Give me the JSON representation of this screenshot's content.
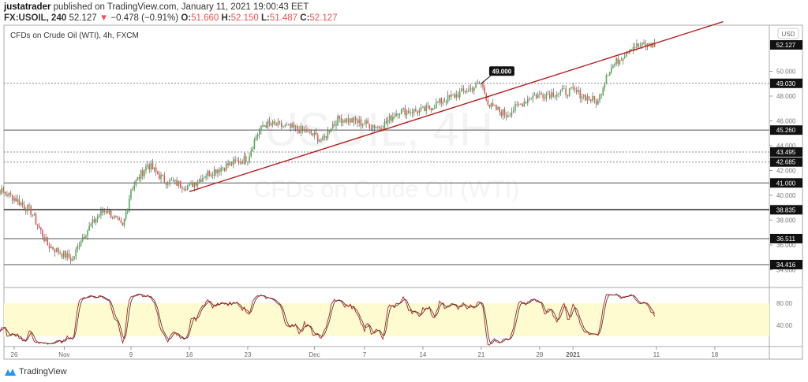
{
  "header": {
    "author": "justatrader",
    "published_text": "published on TradingView.com, January 11, 2021 19:00:43 EET",
    "symbol": "FX:USOIL, 240",
    "last": "52.127",
    "change": "−0.478 (−0.91%)",
    "o_label": "O:",
    "o": "51.660",
    "h_label": "H:",
    "h": "52.150",
    "l_label": "L:",
    "l": "51.487",
    "c_label": "C:",
    "c": "52.127",
    "direction_icon": "triangle-down-icon"
  },
  "chart_title": "CFDs on Crude Oil (WTI), 4h, FXCM",
  "watermark": {
    "line1": "USOIL, 4H",
    "line2": "CFDs on Crude Oil (WTI)"
  },
  "currency": "USD",
  "footer": {
    "brand": "TradingView"
  },
  "colors": {
    "up": "#26a69a",
    "down": "#ef5350",
    "candle_up": "#4caf50",
    "trendline": "#b71c1c",
    "stoch_k": "#b71c1c",
    "stoch_d": "#2e2e2e",
    "band": "#fffbd0"
  },
  "chart_data": [
    {
      "type": "candlestick",
      "title": "CFDs on Crude Oil (WTI), 4h, FXCM",
      "ylim": [
        33.5,
        53.5
      ],
      "y_ticks": [
        "34.000",
        "36.000",
        "38.000",
        "40.000",
        "42.000",
        "44.000",
        "46.000",
        "48.000",
        "50.000"
      ],
      "x_ticks": [
        "26",
        "Nov",
        "9",
        "16",
        "23",
        "Dec",
        "7",
        "14",
        "21",
        "28",
        "2021",
        "11",
        "18"
      ],
      "price_path": [
        {
          "date": "2020-10-23",
          "close": 40.8
        },
        {
          "date": "2020-10-26",
          "close": 39.8
        },
        {
          "date": "2020-10-28",
          "close": 38.7
        },
        {
          "date": "2020-10-30",
          "close": 36.0
        },
        {
          "date": "2020-11-02",
          "close": 34.8
        },
        {
          "date": "2020-11-03",
          "close": 36.5
        },
        {
          "date": "2020-11-05",
          "close": 38.3
        },
        {
          "date": "2020-11-06",
          "close": 38.9
        },
        {
          "date": "2020-11-08",
          "close": 37.4
        },
        {
          "date": "2020-11-09",
          "close": 40.5
        },
        {
          "date": "2020-11-10",
          "close": 41.5
        },
        {
          "date": "2020-11-11",
          "close": 42.5
        },
        {
          "date": "2020-11-13",
          "close": 41.2
        },
        {
          "date": "2020-11-16",
          "close": 40.7
        },
        {
          "date": "2020-11-18",
          "close": 41.7
        },
        {
          "date": "2020-11-20",
          "close": 42.3
        },
        {
          "date": "2020-11-23",
          "close": 43.0
        },
        {
          "date": "2020-11-24",
          "close": 44.8
        },
        {
          "date": "2020-11-25",
          "close": 45.7
        },
        {
          "date": "2020-11-26",
          "close": 45.7
        },
        {
          "date": "2020-11-30",
          "close": 45.2
        },
        {
          "date": "2020-12-01",
          "close": 44.8
        },
        {
          "date": "2020-12-02",
          "close": 44.4
        },
        {
          "date": "2020-12-03",
          "close": 45.6
        },
        {
          "date": "2020-12-04",
          "close": 46.2
        },
        {
          "date": "2020-12-07",
          "close": 45.8
        },
        {
          "date": "2020-12-09",
          "close": 45.5
        },
        {
          "date": "2020-12-11",
          "close": 46.8
        },
        {
          "date": "2020-12-14",
          "close": 46.8
        },
        {
          "date": "2020-12-16",
          "close": 47.5
        },
        {
          "date": "2020-12-18",
          "close": 48.1
        },
        {
          "date": "2020-12-21",
          "close": 49.0
        },
        {
          "date": "2020-12-22",
          "close": 47.2
        },
        {
          "date": "2020-12-24",
          "close": 46.5
        },
        {
          "date": "2020-12-27",
          "close": 48.0
        },
        {
          "date": "2020-12-29",
          "close": 48.2
        },
        {
          "date": "2021-01-01",
          "close": 48.4
        },
        {
          "date": "2021-01-04",
          "close": 47.5
        },
        {
          "date": "2021-01-05",
          "close": 49.8
        },
        {
          "date": "2021-01-06",
          "close": 50.6
        },
        {
          "date": "2021-01-08",
          "close": 52.0
        },
        {
          "date": "2021-01-11",
          "close": 52.127
        }
      ],
      "horizontal_levels": [
        {
          "value": "52.127",
          "style": "last"
        },
        {
          "value": "49.030",
          "style": "dotted"
        },
        {
          "value": "45.260",
          "style": "solid"
        },
        {
          "value": "43.495",
          "style": "dotted"
        },
        {
          "value": "42.685",
          "style": "dotted"
        },
        {
          "value": "41.000",
          "style": "solid"
        },
        {
          "value": "38.835",
          "style": "bold"
        },
        {
          "value": "36.511",
          "style": "solid"
        },
        {
          "value": "34.416",
          "style": "solid"
        }
      ],
      "trendline": {
        "from": {
          "date": "2020-11-16",
          "price": 40.3
        },
        "to": {
          "date": "2021-01-19",
          "price": 54.0
        }
      },
      "callout": {
        "text": "49.000",
        "date": "2020-12-21",
        "price": 49.0
      }
    },
    {
      "type": "line",
      "indicator": "Stochastic",
      "ylim": [
        0,
        100
      ],
      "y_ticks": [
        "80.00",
        "40.00"
      ],
      "band": [
        20,
        80
      ]
    }
  ]
}
